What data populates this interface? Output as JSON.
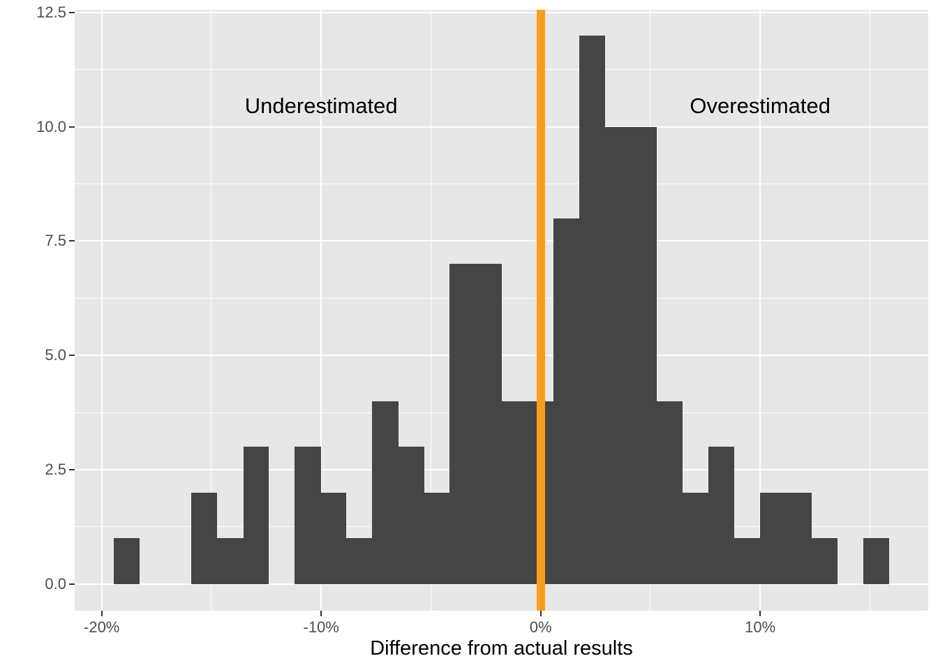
{
  "chart_data": {
    "type": "bar",
    "subtype": "histogram",
    "title": "",
    "xlabel": "Difference from actual results",
    "ylabel": "",
    "x_unit": "percent",
    "xlim": [
      -21.2,
      17.7
    ],
    "ylim": [
      -0.6,
      12.6
    ],
    "grid": "on",
    "legend_position": "none",
    "x_ticks": [
      {
        "value": -20,
        "label": "-20%"
      },
      {
        "value": -10,
        "label": "-10%"
      },
      {
        "value": 0,
        "label": "0%"
      },
      {
        "value": 10,
        "label": "10%"
      }
    ],
    "y_ticks": [
      {
        "value": 0,
        "label": "0.0"
      },
      {
        "value": 2.5,
        "label": "2.5"
      },
      {
        "value": 5,
        "label": "5.0"
      },
      {
        "value": 7.5,
        "label": "7.5"
      },
      {
        "value": 10,
        "label": "10.0"
      },
      {
        "value": 12.5,
        "label": "12.5"
      }
    ],
    "x_minor_gridlines": [
      -15,
      -5,
      5,
      15
    ],
    "y_minor_gridlines": [
      1.25,
      3.75,
      6.25,
      8.75,
      11.25
    ],
    "bin_width_pct": 1.1772,
    "total_count": 100,
    "bins": [
      {
        "x0": -19.44,
        "x1": -18.26,
        "count": 1
      },
      {
        "x0": -18.26,
        "x1": -17.09,
        "count": 0
      },
      {
        "x0": -17.09,
        "x1": -15.91,
        "count": 0
      },
      {
        "x0": -15.91,
        "x1": -14.73,
        "count": 2
      },
      {
        "x0": -14.73,
        "x1": -13.55,
        "count": 1
      },
      {
        "x0": -13.55,
        "x1": -12.38,
        "count": 3
      },
      {
        "x0": -12.38,
        "x1": -11.2,
        "count": 0
      },
      {
        "x0": -11.2,
        "x1": -10.02,
        "count": 3
      },
      {
        "x0": -10.02,
        "x1": -8.85,
        "count": 2
      },
      {
        "x0": -8.85,
        "x1": -7.67,
        "count": 1
      },
      {
        "x0": -7.67,
        "x1": -6.49,
        "count": 4
      },
      {
        "x0": -6.49,
        "x1": -5.31,
        "count": 3
      },
      {
        "x0": -5.31,
        "x1": -4.14,
        "count": 2
      },
      {
        "x0": -4.14,
        "x1": -2.96,
        "count": 7
      },
      {
        "x0": -2.96,
        "x1": -1.78,
        "count": 7
      },
      {
        "x0": -1.78,
        "x1": -0.61,
        "count": 4
      },
      {
        "x0": -0.61,
        "x1": 0.57,
        "count": 4
      },
      {
        "x0": 0.57,
        "x1": 1.75,
        "count": 8
      },
      {
        "x0": 1.75,
        "x1": 2.93,
        "count": 12
      },
      {
        "x0": 2.93,
        "x1": 4.1,
        "count": 10
      },
      {
        "x0": 4.1,
        "x1": 5.28,
        "count": 10
      },
      {
        "x0": 5.28,
        "x1": 6.46,
        "count": 4
      },
      {
        "x0": 6.46,
        "x1": 7.63,
        "count": 2
      },
      {
        "x0": 7.63,
        "x1": 8.81,
        "count": 3
      },
      {
        "x0": 8.81,
        "x1": 9.99,
        "count": 1
      },
      {
        "x0": 9.99,
        "x1": 11.17,
        "count": 2
      },
      {
        "x0": 11.17,
        "x1": 12.34,
        "count": 2
      },
      {
        "x0": 12.34,
        "x1": 13.52,
        "count": 1
      },
      {
        "x0": 13.52,
        "x1": 14.7,
        "count": 0
      },
      {
        "x0": 14.7,
        "x1": 15.87,
        "count": 1
      }
    ],
    "vline": {
      "x": 0,
      "color": "#FB9E17"
    },
    "annotations": [
      {
        "text": "Underestimated",
        "x": -10,
        "y": 10.45
      },
      {
        "text": "Overestimated",
        "x": 10,
        "y": 10.45
      }
    ],
    "colors": {
      "bar": "#454545",
      "panel_bg": "#E7E7E7",
      "gridline": "#FFFFFF",
      "tick_text": "#4D4D4D",
      "tick_mark": "#333333",
      "annotation_text": "#000000",
      "axis_title_text": "#000000",
      "background": "#FFFFFF"
    }
  }
}
